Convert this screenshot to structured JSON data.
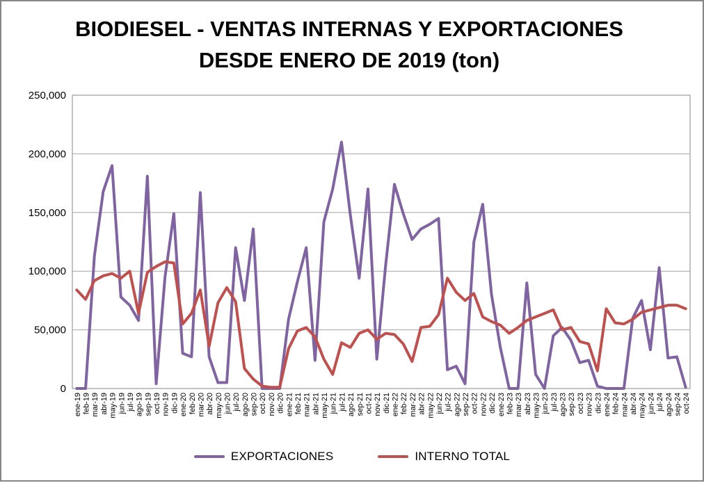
{
  "chart_data": {
    "type": "line",
    "title_line1": "BIODIESEL - VENTAS INTERNAS Y EXPORTACIONES",
    "title_line2": "DESDE ENERO DE 2019 (ton)",
    "grid": true,
    "legend_position": "bottom",
    "ylim": [
      0,
      250000
    ],
    "yticks": [
      0,
      50000,
      100000,
      150000,
      200000,
      250000
    ],
    "ytick_labels": [
      "0",
      "50,000",
      "100,000",
      "150,000",
      "200,000",
      "250,000"
    ],
    "categories": [
      "ene-19",
      "feb-19",
      "mar-19",
      "abr-19",
      "may-19",
      "jun-19",
      "jul-19",
      "ago-19",
      "sep-19",
      "oct-19",
      "nov-19",
      "dic-19",
      "ene-20",
      "feb-20",
      "mar-20",
      "abr-20",
      "may-20",
      "jun-20",
      "jul-20",
      "ago-20",
      "sep-20",
      "oct-20",
      "nov-20",
      "dic-20",
      "ene-21",
      "feb-21",
      "mar-21",
      "abr-21",
      "may-21",
      "jun-21",
      "jul-21",
      "ago-21",
      "sep-21",
      "oct-21",
      "nov-21",
      "dic-21",
      "ene-22",
      "feb-22",
      "mar-22",
      "abr-22",
      "may-22",
      "jun-22",
      "jul-22",
      "ago-22",
      "sep-22",
      "oct-22",
      "nov-22",
      "dic-22",
      "ene-23",
      "feb-23",
      "mar-23",
      "abr-23",
      "may-23",
      "jun-23",
      "jul-23",
      "ago-23",
      "sep-23",
      "oct-23",
      "nov-23",
      "dic-23",
      "ene-24",
      "feb-24",
      "mar-24",
      "abr-24",
      "may-24",
      "jun-24",
      "jul-24",
      "ago-24",
      "sep-24",
      "oct-24"
    ],
    "series": [
      {
        "name": "EXPORTACIONES",
        "color": "#8064A2",
        "values": [
          0,
          0,
          113000,
          168000,
          190000,
          78000,
          71000,
          58000,
          181000,
          4000,
          95000,
          149000,
          30000,
          27000,
          167000,
          27000,
          5000,
          5000,
          120000,
          75000,
          136000,
          0,
          0,
          0,
          59000,
          91000,
          120000,
          24000,
          142000,
          170000,
          210000,
          148000,
          94000,
          170000,
          25000,
          105000,
          174000,
          149000,
          127000,
          136000,
          140000,
          145000,
          16000,
          19000,
          4000,
          125000,
          157000,
          80000,
          35000,
          0,
          0,
          90000,
          12000,
          0,
          45000,
          52000,
          41000,
          22000,
          24000,
          2000,
          0,
          0,
          0,
          60000,
          75000,
          33000,
          103000,
          26000,
          27000,
          1000
        ]
      },
      {
        "name": "INTERNO TOTAL",
        "color": "#C0504D",
        "values": [
          84000,
          76000,
          92000,
          96000,
          98000,
          94000,
          100000,
          64000,
          99000,
          104000,
          108000,
          107000,
          55000,
          64000,
          84000,
          36000,
          73000,
          86000,
          74000,
          17000,
          8000,
          2000,
          1000,
          1000,
          34000,
          49000,
          52000,
          44000,
          25000,
          12000,
          39000,
          35000,
          47000,
          50000,
          42000,
          47000,
          46000,
          38000,
          23000,
          52000,
          53000,
          63000,
          94000,
          82000,
          75000,
          81000,
          61000,
          57000,
          54000,
          47000,
          52000,
          58000,
          61000,
          64000,
          67000,
          50000,
          52000,
          40000,
          38000,
          15000,
          68000,
          56000,
          55000,
          59000,
          65000,
          67000,
          69000,
          71000,
          71000,
          68000
        ]
      }
    ],
    "axis_color": "#9c9c9c",
    "grid_color": "#a6a6a6"
  }
}
